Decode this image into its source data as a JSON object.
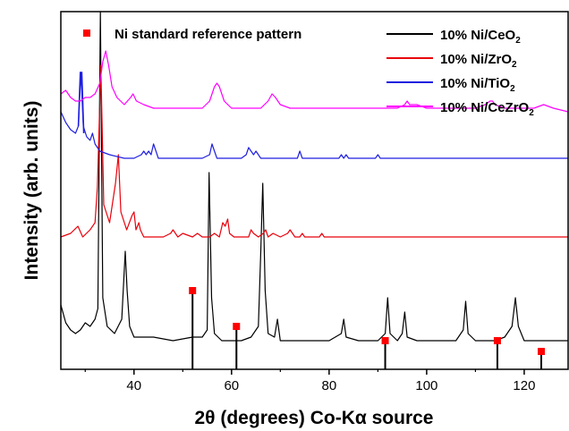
{
  "chart_data": {
    "type": "line",
    "xlabel": "2θ (degrees) Co-Kα source",
    "ylabel": "Intensity (arb. units)",
    "xlim": [
      25,
      129
    ],
    "x_ticks": [
      40,
      60,
      80,
      100,
      120
    ],
    "y_ticks_visible": false,
    "series": [
      {
        "name": "10% Ni/CeO",
        "sub": "2",
        "color": "#000000",
        "x": [
          25,
          26,
          27,
          28,
          29,
          30,
          31,
          32,
          32.6,
          33.1,
          33.6,
          34.5,
          36,
          37.5,
          38.2,
          38.6,
          39.1,
          40,
          44,
          48,
          52,
          54,
          55,
          55.4,
          55.9,
          56.5,
          58,
          60,
          62,
          64,
          65.5,
          66,
          66.4,
          66.9,
          67.5,
          68.8,
          69.4,
          70,
          72,
          76,
          80,
          82.5,
          83,
          83.5,
          86,
          88,
          90,
          91.5,
          92,
          92.5,
          94,
          95,
          95.5,
          96,
          98,
          100,
          102,
          104,
          106,
          107.5,
          108,
          108.5,
          110,
          112,
          114,
          116,
          117.5,
          118.2,
          118.8,
          120,
          122,
          124,
          126,
          129
        ],
        "y": [
          0.18,
          0.13,
          0.11,
          0.1,
          0.11,
          0.13,
          0.12,
          0.14,
          0.17,
          1.0,
          0.2,
          0.12,
          0.1,
          0.14,
          0.33,
          0.22,
          0.12,
          0.09,
          0.09,
          0.08,
          0.09,
          0.09,
          0.11,
          0.55,
          0.2,
          0.1,
          0.08,
          0.08,
          0.08,
          0.09,
          0.12,
          0.33,
          0.52,
          0.22,
          0.1,
          0.09,
          0.14,
          0.08,
          0.08,
          0.08,
          0.08,
          0.1,
          0.14,
          0.09,
          0.08,
          0.08,
          0.08,
          0.1,
          0.2,
          0.1,
          0.08,
          0.1,
          0.16,
          0.09,
          0.08,
          0.08,
          0.08,
          0.08,
          0.08,
          0.11,
          0.19,
          0.1,
          0.08,
          0.08,
          0.08,
          0.09,
          0.12,
          0.2,
          0.12,
          0.08,
          0.08,
          0.08,
          0.08,
          0.08
        ]
      },
      {
        "name": "10% Ni/ZrO",
        "sub": "2",
        "color": "#e8000b",
        "x": [
          25,
          27,
          28.5,
          29.5,
          31,
          32,
          32.5,
          33.2,
          33.8,
          35,
          36.2,
          36.8,
          37.3,
          38.5,
          39.6,
          40,
          40.4,
          41,
          41.3,
          42,
          44,
          46,
          47.5,
          48,
          49,
          50,
          52,
          53,
          54,
          55.5,
          56.5,
          57.5,
          58.2,
          58.7,
          59.2,
          59.6,
          60.5,
          62,
          63.5,
          64,
          64.5,
          65.5,
          66.5,
          67,
          67.5,
          68.5,
          70,
          71.5,
          72,
          73,
          74,
          74.5,
          75,
          76,
          78,
          78.5,
          79,
          80,
          82,
          84,
          86,
          88,
          90,
          92,
          94,
          96,
          98,
          100,
          102,
          104,
          106,
          108,
          110,
          112,
          114,
          116,
          118,
          120,
          122,
          124,
          126,
          129
        ],
        "y": [
          0.37,
          0.38,
          0.4,
          0.37,
          0.39,
          0.41,
          0.51,
          0.85,
          0.46,
          0.41,
          0.52,
          0.6,
          0.44,
          0.39,
          0.43,
          0.44,
          0.39,
          0.41,
          0.39,
          0.37,
          0.37,
          0.37,
          0.38,
          0.39,
          0.37,
          0.38,
          0.37,
          0.38,
          0.37,
          0.37,
          0.38,
          0.37,
          0.41,
          0.4,
          0.42,
          0.38,
          0.37,
          0.37,
          0.37,
          0.39,
          0.38,
          0.37,
          0.38,
          0.39,
          0.37,
          0.38,
          0.37,
          0.38,
          0.39,
          0.37,
          0.37,
          0.38,
          0.37,
          0.37,
          0.37,
          0.38,
          0.37,
          0.37,
          0.37,
          0.37,
          0.37,
          0.37,
          0.37,
          0.37,
          0.37,
          0.37,
          0.37,
          0.37,
          0.37,
          0.37,
          0.37,
          0.37,
          0.37,
          0.37,
          0.37,
          0.37,
          0.37,
          0.37,
          0.37,
          0.37,
          0.37,
          0.37
        ]
      },
      {
        "name": "10% Ni/TiO",
        "sub": "2",
        "color": "#1f1fe0",
        "x": [
          25,
          26,
          27,
          28,
          28.6,
          29.1,
          29.6,
          30.3,
          31,
          31.5,
          32,
          33,
          35,
          38,
          40,
          41.5,
          42,
          42.5,
          43,
          43.5,
          44,
          44.5,
          45,
          46,
          48,
          50,
          52,
          54,
          55.5,
          56,
          56.5,
          57,
          58,
          60,
          62,
          63,
          63.5,
          64,
          64.5,
          65,
          65.5,
          66,
          68,
          70,
          72,
          73.5,
          74,
          74.5,
          76,
          78,
          80,
          82,
          82.5,
          83,
          83.5,
          84,
          86,
          88,
          89.5,
          90,
          90.5,
          92,
          94,
          96,
          98,
          100,
          102,
          104,
          106,
          108,
          110,
          112,
          114,
          116,
          118,
          120,
          122,
          124,
          126,
          129
        ],
        "y": [
          0.72,
          0.69,
          0.67,
          0.66,
          0.68,
          0.83,
          0.68,
          0.65,
          0.64,
          0.66,
          0.63,
          0.61,
          0.6,
          0.59,
          0.59,
          0.6,
          0.61,
          0.6,
          0.61,
          0.6,
          0.63,
          0.61,
          0.59,
          0.59,
          0.59,
          0.59,
          0.59,
          0.59,
          0.6,
          0.63,
          0.61,
          0.59,
          0.59,
          0.59,
          0.59,
          0.6,
          0.62,
          0.61,
          0.6,
          0.61,
          0.6,
          0.59,
          0.59,
          0.59,
          0.59,
          0.59,
          0.61,
          0.59,
          0.59,
          0.59,
          0.59,
          0.59,
          0.6,
          0.59,
          0.6,
          0.59,
          0.59,
          0.59,
          0.59,
          0.6,
          0.59,
          0.59,
          0.59,
          0.59,
          0.59,
          0.59,
          0.59,
          0.59,
          0.59,
          0.59,
          0.59,
          0.59,
          0.59,
          0.59,
          0.59,
          0.59,
          0.59,
          0.59,
          0.59,
          0.59
        ],
        "spike": {
          "x": [
            28.6,
            29.0,
            29.3,
            29.7
          ],
          "y": [
            0.68,
            0.83,
            0.83,
            0.66
          ]
        }
      },
      {
        "name": "10% Ni/CeZrO",
        "sub": "2",
        "color": "#ff00ff",
        "x": [
          25,
          26,
          27,
          28,
          29,
          30,
          31,
          32,
          33,
          33.6,
          34.2,
          34.8,
          35.5,
          36.5,
          38,
          39.3,
          39.8,
          40.5,
          42,
          44,
          46,
          48,
          50,
          52,
          54,
          55.5,
          56.5,
          57,
          57.5,
          58.5,
          60,
          62,
          64,
          66,
          67.5,
          68.3,
          69,
          70,
          72,
          74,
          76,
          78,
          80,
          82,
          84,
          86,
          88,
          90,
          92,
          94,
          95.5,
          96,
          96.5,
          98,
          100,
          102,
          104,
          106,
          108,
          110,
          112,
          113,
          113.5,
          114,
          116,
          118,
          120,
          122,
          124,
          126,
          129
        ],
        "y": [
          0.77,
          0.78,
          0.76,
          0.75,
          0.75,
          0.76,
          0.76,
          0.77,
          0.8,
          0.86,
          0.89,
          0.85,
          0.79,
          0.76,
          0.74,
          0.76,
          0.77,
          0.75,
          0.74,
          0.73,
          0.73,
          0.73,
          0.73,
          0.73,
          0.73,
          0.75,
          0.79,
          0.8,
          0.79,
          0.75,
          0.73,
          0.73,
          0.73,
          0.73,
          0.75,
          0.77,
          0.76,
          0.74,
          0.73,
          0.73,
          0.73,
          0.73,
          0.73,
          0.73,
          0.73,
          0.73,
          0.73,
          0.73,
          0.73,
          0.73,
          0.74,
          0.75,
          0.74,
          0.74,
          0.73,
          0.73,
          0.73,
          0.73,
          0.73,
          0.73,
          0.74,
          0.75,
          0.75,
          0.74,
          0.73,
          0.73,
          0.73,
          0.73,
          0.74,
          0.73,
          0.72
        ]
      }
    ],
    "reference": {
      "name": "Ni standard reference pattern",
      "color": "#ff0000",
      "x": [
        52,
        61,
        91.5,
        114.5,
        123.5
      ],
      "y": [
        0.22,
        0.12,
        0.08,
        0.08,
        0.05
      ]
    },
    "legend_position": "top"
  }
}
